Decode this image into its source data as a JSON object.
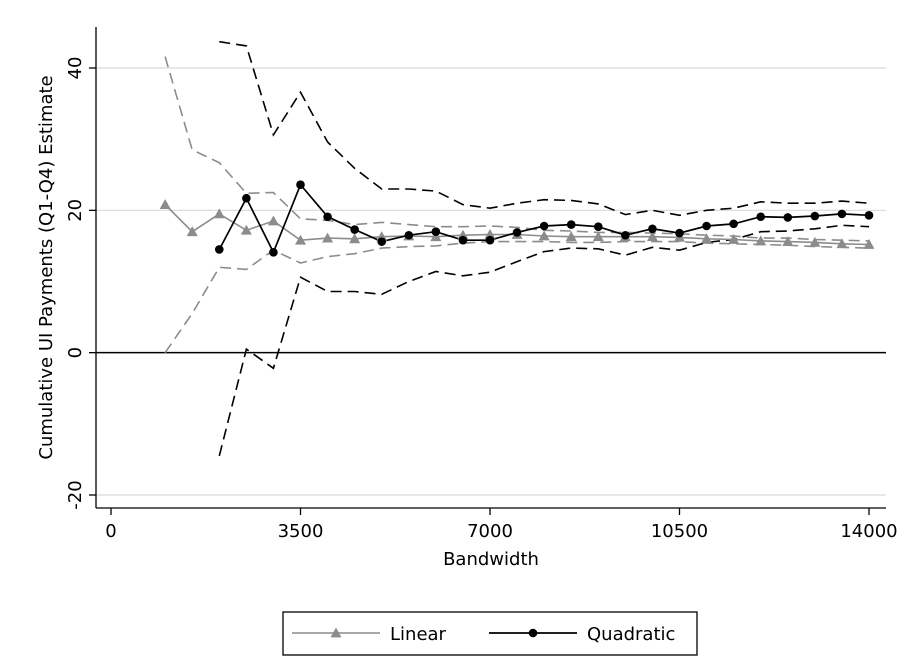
{
  "chart_data": {
    "type": "line",
    "title": "",
    "xlabel": "Bandwidth",
    "ylabel": "Cumulative UI Payments (Q1-Q4) Estimate",
    "xlim": [
      0,
      14000
    ],
    "ylim": [
      -20,
      40
    ],
    "xticks": [
      0,
      3500,
      7000,
      10500,
      14000
    ],
    "xtick_labels": [
      "0",
      "3500",
      "7000",
      "10500",
      "14000"
    ],
    "yticks": [
      -20,
      0,
      20,
      40
    ],
    "ytick_labels": [
      "-20",
      "0",
      "20",
      "40"
    ],
    "grid": "horizontal",
    "reference_line": 0,
    "legend_position": "bottom",
    "colors": {
      "linear": "#8c8c8c",
      "quadratic": "#000000"
    },
    "series": [
      {
        "name": "Linear",
        "marker": "triangle",
        "x": [
          1000,
          1500,
          2000,
          2500,
          3000,
          3500,
          4000,
          4500,
          5000,
          5500,
          6000,
          6500,
          7000,
          7500,
          8000,
          8500,
          9000,
          9500,
          10000,
          10500,
          11000,
          11500,
          12000,
          12500,
          13000,
          13500,
          14000
        ],
        "values": [
          20.8,
          17.0,
          19.5,
          17.2,
          18.5,
          15.8,
          16.1,
          16.0,
          16.3,
          16.4,
          16.3,
          16.5,
          16.6,
          16.6,
          16.4,
          16.3,
          16.3,
          16.3,
          16.3,
          16.2,
          16.0,
          15.9,
          15.7,
          15.6,
          15.5,
          15.3,
          15.2
        ],
        "ci_upper": [
          41.6,
          28.5,
          26.7,
          22.4,
          22.5,
          18.8,
          18.6,
          18.0,
          18.3,
          18.0,
          17.7,
          17.7,
          17.8,
          17.6,
          17.2,
          17.1,
          16.9,
          16.9,
          16.8,
          16.7,
          16.5,
          16.4,
          16.1,
          16.1,
          15.9,
          15.8,
          15.7
        ],
        "ci_lower": [
          0.0,
          5.5,
          12.0,
          11.7,
          14.4,
          12.6,
          13.5,
          13.9,
          14.7,
          14.9,
          15.0,
          15.4,
          15.6,
          15.6,
          15.6,
          15.5,
          15.5,
          15.6,
          15.6,
          15.6,
          15.4,
          15.3,
          15.2,
          15.1,
          14.9,
          14.8,
          14.7
        ]
      },
      {
        "name": "Quadratic",
        "marker": "circle",
        "x": [
          2000,
          2500,
          3000,
          3500,
          4000,
          4500,
          5000,
          5500,
          6000,
          6500,
          7000,
          7500,
          8000,
          8500,
          9000,
          9500,
          10000,
          10500,
          11000,
          11500,
          12000,
          12500,
          13000,
          13500,
          14000
        ],
        "values": [
          14.5,
          21.7,
          14.1,
          23.6,
          19.1,
          17.3,
          15.6,
          16.5,
          17.0,
          15.8,
          15.8,
          16.9,
          17.8,
          18.0,
          17.7,
          16.5,
          17.4,
          16.8,
          17.8,
          18.1,
          19.1,
          19.0,
          19.2,
          19.5,
          19.3
        ],
        "ci_upper": [
          43.7,
          43.1,
          30.6,
          36.6,
          29.6,
          25.9,
          23.0,
          23.0,
          22.7,
          20.8,
          20.3,
          21.0,
          21.5,
          21.4,
          20.9,
          19.4,
          20.0,
          19.3,
          20.0,
          20.3,
          21.2,
          21.0,
          21.0,
          21.3,
          21.0
        ],
        "ci_lower": [
          -14.5,
          0.5,
          -2.2,
          10.6,
          8.6,
          8.6,
          8.2,
          10.0,
          11.4,
          10.8,
          11.3,
          12.8,
          14.2,
          14.7,
          14.6,
          13.7,
          14.8,
          14.4,
          15.5,
          15.9,
          17.0,
          17.1,
          17.4,
          17.9,
          17.7
        ]
      }
    ]
  }
}
